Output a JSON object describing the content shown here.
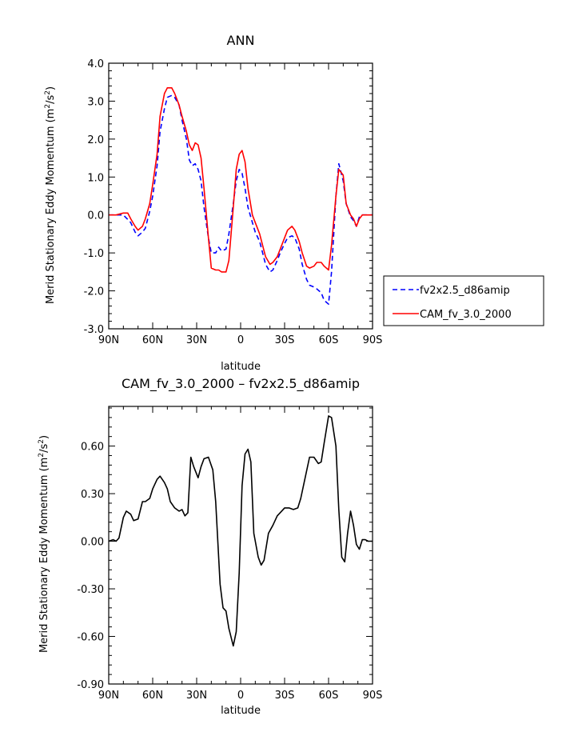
{
  "chart_data": [
    {
      "type": "line",
      "title": "ANN",
      "xlabel": "latitude",
      "ylabel": "Merid Stationary Eddy Momentum (m²/s²)",
      "ylabel_parts": {
        "main": "Merid Stationary Eddy Momentum (m",
        "sup1": "2",
        "mid": "/s",
        "sup2": "2",
        "end": ")"
      },
      "xlim": [
        90,
        -90
      ],
      "ylim": [
        -3.0,
        4.0
      ],
      "x_ticks": [
        90,
        60,
        30,
        0,
        -30,
        -60,
        -90
      ],
      "x_tick_labels": [
        "90N",
        "60N",
        "30N",
        "0",
        "30S",
        "60S",
        "90S"
      ],
      "y_ticks": [
        -3.0,
        -2.0,
        -1.0,
        0.0,
        1.0,
        2.0,
        3.0,
        4.0
      ],
      "y_tick_labels": [
        "-3.0",
        "-2.0",
        "-1.0",
        "0.0",
        "1.0",
        "2.0",
        "3.0",
        "4.0"
      ],
      "legend_position": "right",
      "series": [
        {
          "name": "fv2x2.5_d86amip",
          "color": "#0000ff",
          "dash": "dashed",
          "x": [
            90,
            85,
            80,
            75,
            72,
            70,
            67,
            65,
            62,
            60,
            57,
            55,
            52,
            50,
            47,
            45,
            42,
            40,
            37,
            35,
            33,
            31,
            29,
            27,
            25,
            22,
            20,
            17,
            15,
            13,
            10,
            8,
            5,
            3,
            1,
            -1,
            -3,
            -5,
            -8,
            -10,
            -13,
            -15,
            -17,
            -20,
            -22,
            -25,
            -27,
            -30,
            -32,
            -35,
            -37,
            -40,
            -42,
            -45,
            -47,
            -50,
            -52,
            -55,
            -57,
            -60,
            -62,
            -65,
            -67,
            -70,
            -72,
            -75,
            -77,
            -79,
            -81,
            -83,
            -85,
            -87,
            -90
          ],
          "y": [
            0.0,
            0.0,
            0.0,
            -0.2,
            -0.45,
            -0.55,
            -0.45,
            -0.35,
            0.1,
            0.5,
            1.3,
            2.2,
            2.8,
            3.1,
            3.15,
            3.1,
            2.9,
            2.5,
            2.0,
            1.45,
            1.3,
            1.35,
            1.2,
            0.9,
            0.2,
            -0.6,
            -1.0,
            -1.0,
            -0.85,
            -0.95,
            -0.9,
            -0.5,
            0.3,
            0.9,
            1.2,
            1.1,
            0.7,
            0.2,
            -0.2,
            -0.45,
            -0.7,
            -1.0,
            -1.3,
            -1.5,
            -1.45,
            -1.2,
            -1.0,
            -0.75,
            -0.6,
            -0.55,
            -0.6,
            -0.9,
            -1.3,
            -1.7,
            -1.85,
            -1.9,
            -1.95,
            -2.05,
            -2.25,
            -2.35,
            -1.5,
            0.5,
            1.35,
            0.9,
            0.3,
            -0.05,
            -0.15,
            -0.3,
            -0.05,
            0.0,
            0.0,
            0.0,
            0.0
          ]
        },
        {
          "name": "CAM_fv_3.0_2000",
          "color": "#ff0000",
          "dash": "solid",
          "x": [
            90,
            85,
            80,
            77,
            75,
            72,
            70,
            67,
            65,
            62,
            60,
            57,
            55,
            52,
            50,
            47,
            45,
            42,
            40,
            37,
            35,
            33,
            31,
            29,
            27,
            25,
            22,
            20,
            17,
            15,
            13,
            10,
            8,
            5,
            3,
            1,
            -1,
            -3,
            -5,
            -8,
            -10,
            -13,
            -15,
            -17,
            -20,
            -22,
            -25,
            -27,
            -30,
            -32,
            -35,
            -37,
            -40,
            -42,
            -45,
            -47,
            -50,
            -52,
            -55,
            -57,
            -60,
            -62,
            -65,
            -67,
            -70,
            -72,
            -75,
            -77,
            -79,
            -81,
            -83,
            -85,
            -87,
            -90
          ],
          "y": [
            0.0,
            0.0,
            0.05,
            0.05,
            -0.1,
            -0.3,
            -0.4,
            -0.3,
            -0.1,
            0.3,
            0.8,
            1.6,
            2.6,
            3.2,
            3.35,
            3.35,
            3.2,
            2.9,
            2.6,
            2.2,
            1.85,
            1.7,
            1.9,
            1.85,
            1.5,
            0.7,
            -0.6,
            -1.4,
            -1.45,
            -1.45,
            -1.5,
            -1.5,
            -1.2,
            0.2,
            1.2,
            1.6,
            1.7,
            1.4,
            0.7,
            0.0,
            -0.2,
            -0.5,
            -0.8,
            -1.1,
            -1.3,
            -1.25,
            -1.1,
            -0.9,
            -0.6,
            -0.4,
            -0.3,
            -0.4,
            -0.7,
            -1.0,
            -1.35,
            -1.4,
            -1.35,
            -1.25,
            -1.25,
            -1.35,
            -1.45,
            -0.8,
            0.5,
            1.2,
            1.05,
            0.3,
            0.0,
            -0.1,
            -0.3,
            -0.1,
            0.0,
            0.0,
            0.0,
            0.0
          ]
        }
      ]
    },
    {
      "type": "line",
      "title": "CAM_fv_3.0_2000 – fv2x2.5_d86amip",
      "xlabel": "latitude",
      "ylabel": "Merid Stationary Eddy Momentum (m²/s²)",
      "ylabel_parts": {
        "main": "Merid Stationary Eddy Momentum (m",
        "sup1": "2",
        "mid": "/s",
        "sup2": "2",
        "end": ")"
      },
      "xlim": [
        90,
        -90
      ],
      "ylim": [
        -0.9,
        0.85
      ],
      "x_ticks": [
        90,
        60,
        30,
        0,
        -30,
        -60,
        -90
      ],
      "x_tick_labels": [
        "90N",
        "60N",
        "30N",
        "0",
        "30S",
        "60S",
        "90S"
      ],
      "y_ticks": [
        -0.9,
        -0.6,
        -0.3,
        0.0,
        0.3,
        0.6
      ],
      "y_tick_labels": [
        "-0.90",
        "-0.60",
        "-0.30",
        "0.00",
        "0.30",
        "0.60"
      ],
      "series": [
        {
          "color": "#000000",
          "dash": "solid",
          "x": [
            90,
            87,
            85,
            83,
            80,
            78,
            75,
            73,
            70,
            67,
            65,
            62,
            60,
            57,
            55,
            52,
            50,
            48,
            45,
            42,
            40,
            38,
            36,
            34,
            32,
            29,
            27,
            25,
            22,
            19,
            17,
            14,
            12,
            10,
            8,
            5,
            3,
            1,
            -1,
            -3,
            -5,
            -7,
            -9,
            -12,
            -14,
            -16,
            -19,
            -22,
            -25,
            -28,
            -30,
            -33,
            -36,
            -39,
            -41,
            -44,
            -47,
            -50,
            -53,
            -55,
            -57,
            -60,
            -62,
            -65,
            -67,
            -69,
            -71,
            -73,
            -75,
            -77,
            -79,
            -81,
            -83,
            -85,
            -87,
            -90
          ],
          "y": [
            0.0,
            0.01,
            0.0,
            0.02,
            0.15,
            0.19,
            0.17,
            0.13,
            0.14,
            0.25,
            0.25,
            0.27,
            0.33,
            0.39,
            0.41,
            0.37,
            0.33,
            0.25,
            0.21,
            0.19,
            0.2,
            0.16,
            0.18,
            0.53,
            0.47,
            0.4,
            0.47,
            0.52,
            0.53,
            0.45,
            0.25,
            -0.27,
            -0.42,
            -0.44,
            -0.55,
            -0.66,
            -0.57,
            -0.2,
            0.35,
            0.55,
            0.58,
            0.5,
            0.05,
            -0.1,
            -0.15,
            -0.12,
            0.05,
            0.1,
            0.16,
            0.19,
            0.21,
            0.21,
            0.2,
            0.21,
            0.27,
            0.4,
            0.53,
            0.53,
            0.49,
            0.5,
            0.62,
            0.79,
            0.78,
            0.6,
            0.2,
            -0.1,
            -0.13,
            0.05,
            0.19,
            0.1,
            -0.02,
            -0.05,
            0.01,
            0.01,
            0.0,
            0.0
          ]
        }
      ]
    }
  ]
}
